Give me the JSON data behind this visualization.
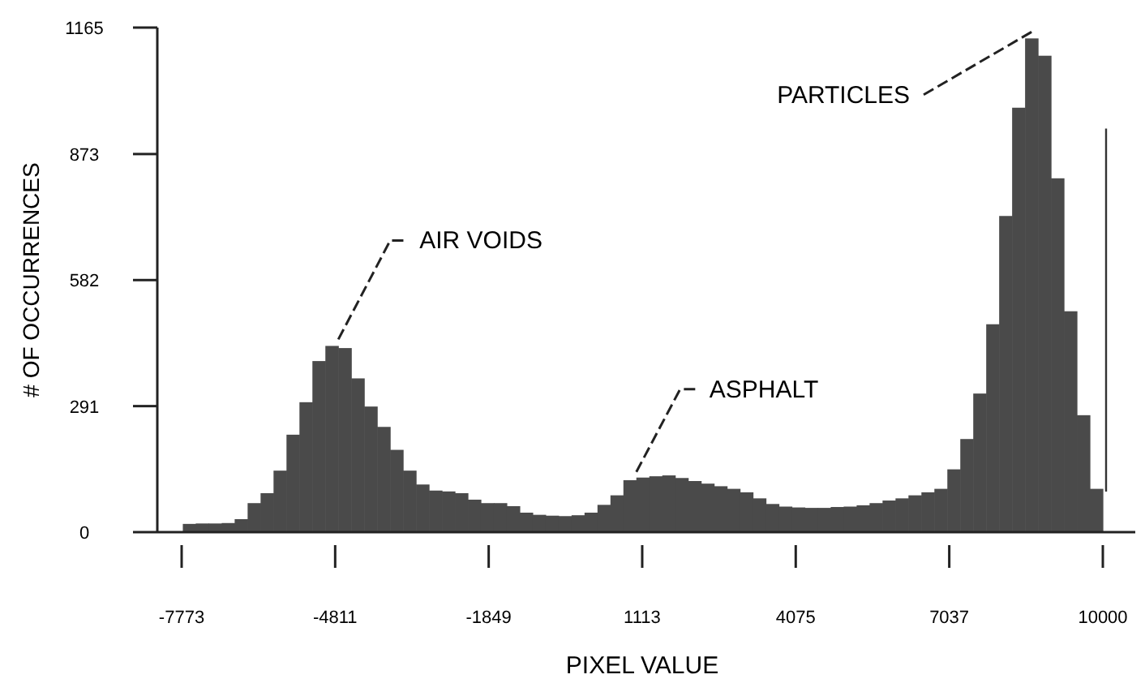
{
  "chart_data": {
    "type": "histogram",
    "xlabel": "PIXEL VALUE",
    "ylabel": "# OF OCCURRENCES",
    "color": "#4a4a4a",
    "bins": [
      -7750,
      -7500,
      -7250,
      -7000,
      -6750,
      -6500,
      -6250,
      -6000,
      -5750,
      -5500,
      -5250,
      -5000,
      -4750,
      -4500,
      -4250,
      -4000,
      -3750,
      -3500,
      -3250,
      -3000,
      -2750,
      -2500,
      -2250,
      -2000,
      -1750,
      -1500,
      -1250,
      -1000,
      -750,
      -500,
      -250,
      0,
      250,
      500,
      750,
      1000,
      1250,
      1500,
      1750,
      2000,
      2250,
      2500,
      2750,
      3000,
      3250,
      3500,
      3750,
      4000,
      4250,
      4500,
      4750,
      5000,
      5250,
      5500,
      5750,
      6000,
      6250,
      6500,
      6750,
      7000,
      7250,
      7500,
      7750,
      8000,
      8250,
      8500,
      8750,
      9000,
      9250,
      9500,
      9750,
      10000
    ],
    "values": [
      19,
      20,
      20,
      21,
      30,
      67,
      90,
      142,
      225,
      300,
      395,
      430,
      425,
      355,
      290,
      243,
      190,
      142,
      110,
      96,
      94,
      90,
      75,
      67,
      67,
      60,
      45,
      40,
      38,
      37,
      39,
      45,
      63,
      85,
      120,
      126,
      129,
      131,
      125,
      118,
      112,
      106,
      100,
      92,
      78,
      65,
      59,
      57,
      56,
      56,
      58,
      59,
      62,
      67,
      73,
      78,
      85,
      92,
      100,
      145,
      215,
      320,
      480,
      730,
      980,
      1140,
      1100,
      817,
      510,
      270,
      100
    ],
    "xlim": [
      -7773,
      10000
    ],
    "xticks": [
      -7773,
      -4811,
      -1849,
      1113,
      4075,
      7037,
      10000
    ],
    "ylim": [
      0,
      1165
    ],
    "yticks": [
      0,
      291,
      582,
      873,
      1165
    ],
    "grid": false,
    "ref_lines": [
      {
        "axis": "x",
        "value": 10000,
        "color": "#333333"
      }
    ],
    "annotations": [
      {
        "text": "AIR VOIDS",
        "x": -4750,
        "y": 430
      },
      {
        "text": "ASPHALT",
        "x": 1000,
        "y": 124
      },
      {
        "text": "PARTICLES",
        "x": 8625,
        "y": 1140
      }
    ]
  }
}
